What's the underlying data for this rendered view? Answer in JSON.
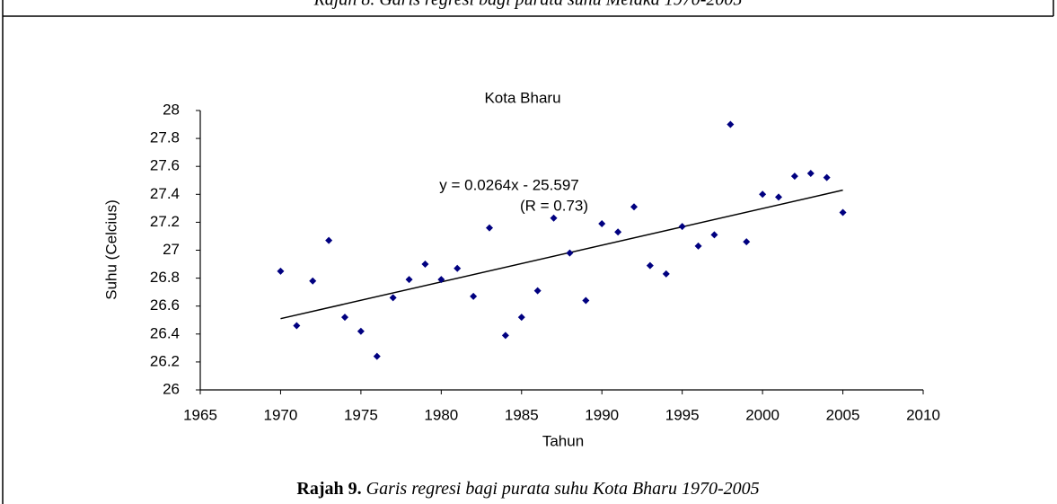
{
  "top_caption": "Rajah 8. Garis regresi bagi purata suhu Melaka 1970-2005",
  "chart_data": {
    "type": "scatter",
    "title": "Kota Bharu",
    "x_label": "Tahun",
    "y_label": "Suhu (Celcius)",
    "x": [
      1970,
      1971,
      1972,
      1973,
      1974,
      1975,
      1976,
      1977,
      1978,
      1979,
      1980,
      1981,
      1982,
      1983,
      1984,
      1985,
      1986,
      1987,
      1988,
      1989,
      1990,
      1991,
      1992,
      1993,
      1994,
      1995,
      1996,
      1997,
      1998,
      1999,
      2000,
      2001,
      2002,
      2003,
      2004,
      2005
    ],
    "values": [
      26.85,
      26.46,
      26.78,
      27.07,
      26.52,
      26.42,
      26.24,
      26.66,
      26.79,
      26.9,
      26.79,
      26.87,
      26.67,
      27.16,
      26.39,
      26.52,
      26.71,
      27.23,
      26.98,
      26.64,
      27.19,
      27.13,
      27.31,
      26.89,
      26.83,
      27.17,
      27.03,
      27.11,
      27.9,
      27.06,
      27.4,
      27.38,
      27.53,
      27.55,
      27.52,
      27.27
    ],
    "color": "#000080",
    "trendline": {
      "x": [
        1970,
        2005
      ],
      "y": [
        26.51,
        27.43
      ],
      "color": "#000000"
    },
    "annotations": [
      "y = 0.0264x - 25.597",
      "(R = 0.73)"
    ],
    "xlim": [
      1965,
      2010
    ],
    "xticks": [
      1965,
      1970,
      1975,
      1980,
      1985,
      1990,
      1995,
      2000,
      2005,
      2010
    ],
    "ylim": [
      26,
      28
    ],
    "yticks": [
      26,
      26.2,
      26.4,
      26.6,
      26.8,
      27,
      27.2,
      27.4,
      27.6,
      27.8,
      28
    ],
    "grid": false
  },
  "caption": {
    "label": "Rajah 9.",
    "text": "Garis regresi bagi purata suhu Kota Bharu 1970-2005"
  }
}
